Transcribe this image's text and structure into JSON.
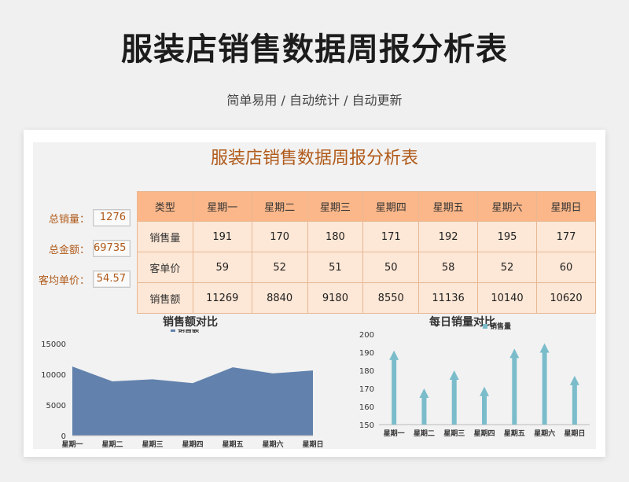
{
  "header": {
    "title": "服装店销售数据周报分析表",
    "subtitle": "简单易用 / 自动统计 / 自动更新"
  },
  "sheet": {
    "title": "服装店销售数据周报分析表",
    "kpis": [
      {
        "label": "总销量：",
        "value": "1276"
      },
      {
        "label": "总金额：",
        "value": "69735"
      },
      {
        "label": "客均单价：",
        "value": "54.57"
      }
    ],
    "table": {
      "headers": [
        "类型",
        "星期一",
        "星期二",
        "星期三",
        "星期四",
        "星期五",
        "星期六",
        "星期日"
      ],
      "rows": [
        {
          "label": "销售量",
          "values": [
            "191",
            "170",
            "180",
            "171",
            "192",
            "195",
            "177"
          ]
        },
        {
          "label": "客单价",
          "values": [
            "59",
            "52",
            "51",
            "50",
            "58",
            "52",
            "60"
          ]
        },
        {
          "label": "销售额",
          "values": [
            "11269",
            "8840",
            "9180",
            "8550",
            "11136",
            "10140",
            "10620"
          ]
        }
      ]
    }
  },
  "colors": {
    "area_fill": "#6282ad",
    "arrow_fill": "#7bbccb",
    "header_fill": "#fbb789",
    "cell_fill": "#fde7d6",
    "accent_text": "#b05a1a"
  },
  "chart_data": [
    {
      "type": "area",
      "title": "销售额对比",
      "categories": [
        "星期一",
        "星期二",
        "星期三",
        "星期四",
        "星期五",
        "星期六",
        "星期日"
      ],
      "series": [
        {
          "name": "销售额",
          "values": [
            11269,
            8840,
            9180,
            8550,
            11136,
            10140,
            10620
          ]
        }
      ],
      "yticks": [
        "0",
        "5000",
        "10000",
        "15000"
      ],
      "ylim": [
        0,
        15000
      ],
      "legend": "top-center",
      "grid": false
    },
    {
      "type": "bar",
      "title": "每日销量对比",
      "categories": [
        "星期一",
        "星期二",
        "星期三",
        "星期四",
        "星期五",
        "星期六",
        "星期日"
      ],
      "series": [
        {
          "name": "销售量",
          "values": [
            191,
            170,
            180,
            171,
            192,
            195,
            177
          ]
        }
      ],
      "yticks": [
        "150",
        "160",
        "170",
        "180",
        "190",
        "200"
      ],
      "ylim": [
        150,
        200
      ],
      "legend": "top-center",
      "grid": false
    }
  ]
}
